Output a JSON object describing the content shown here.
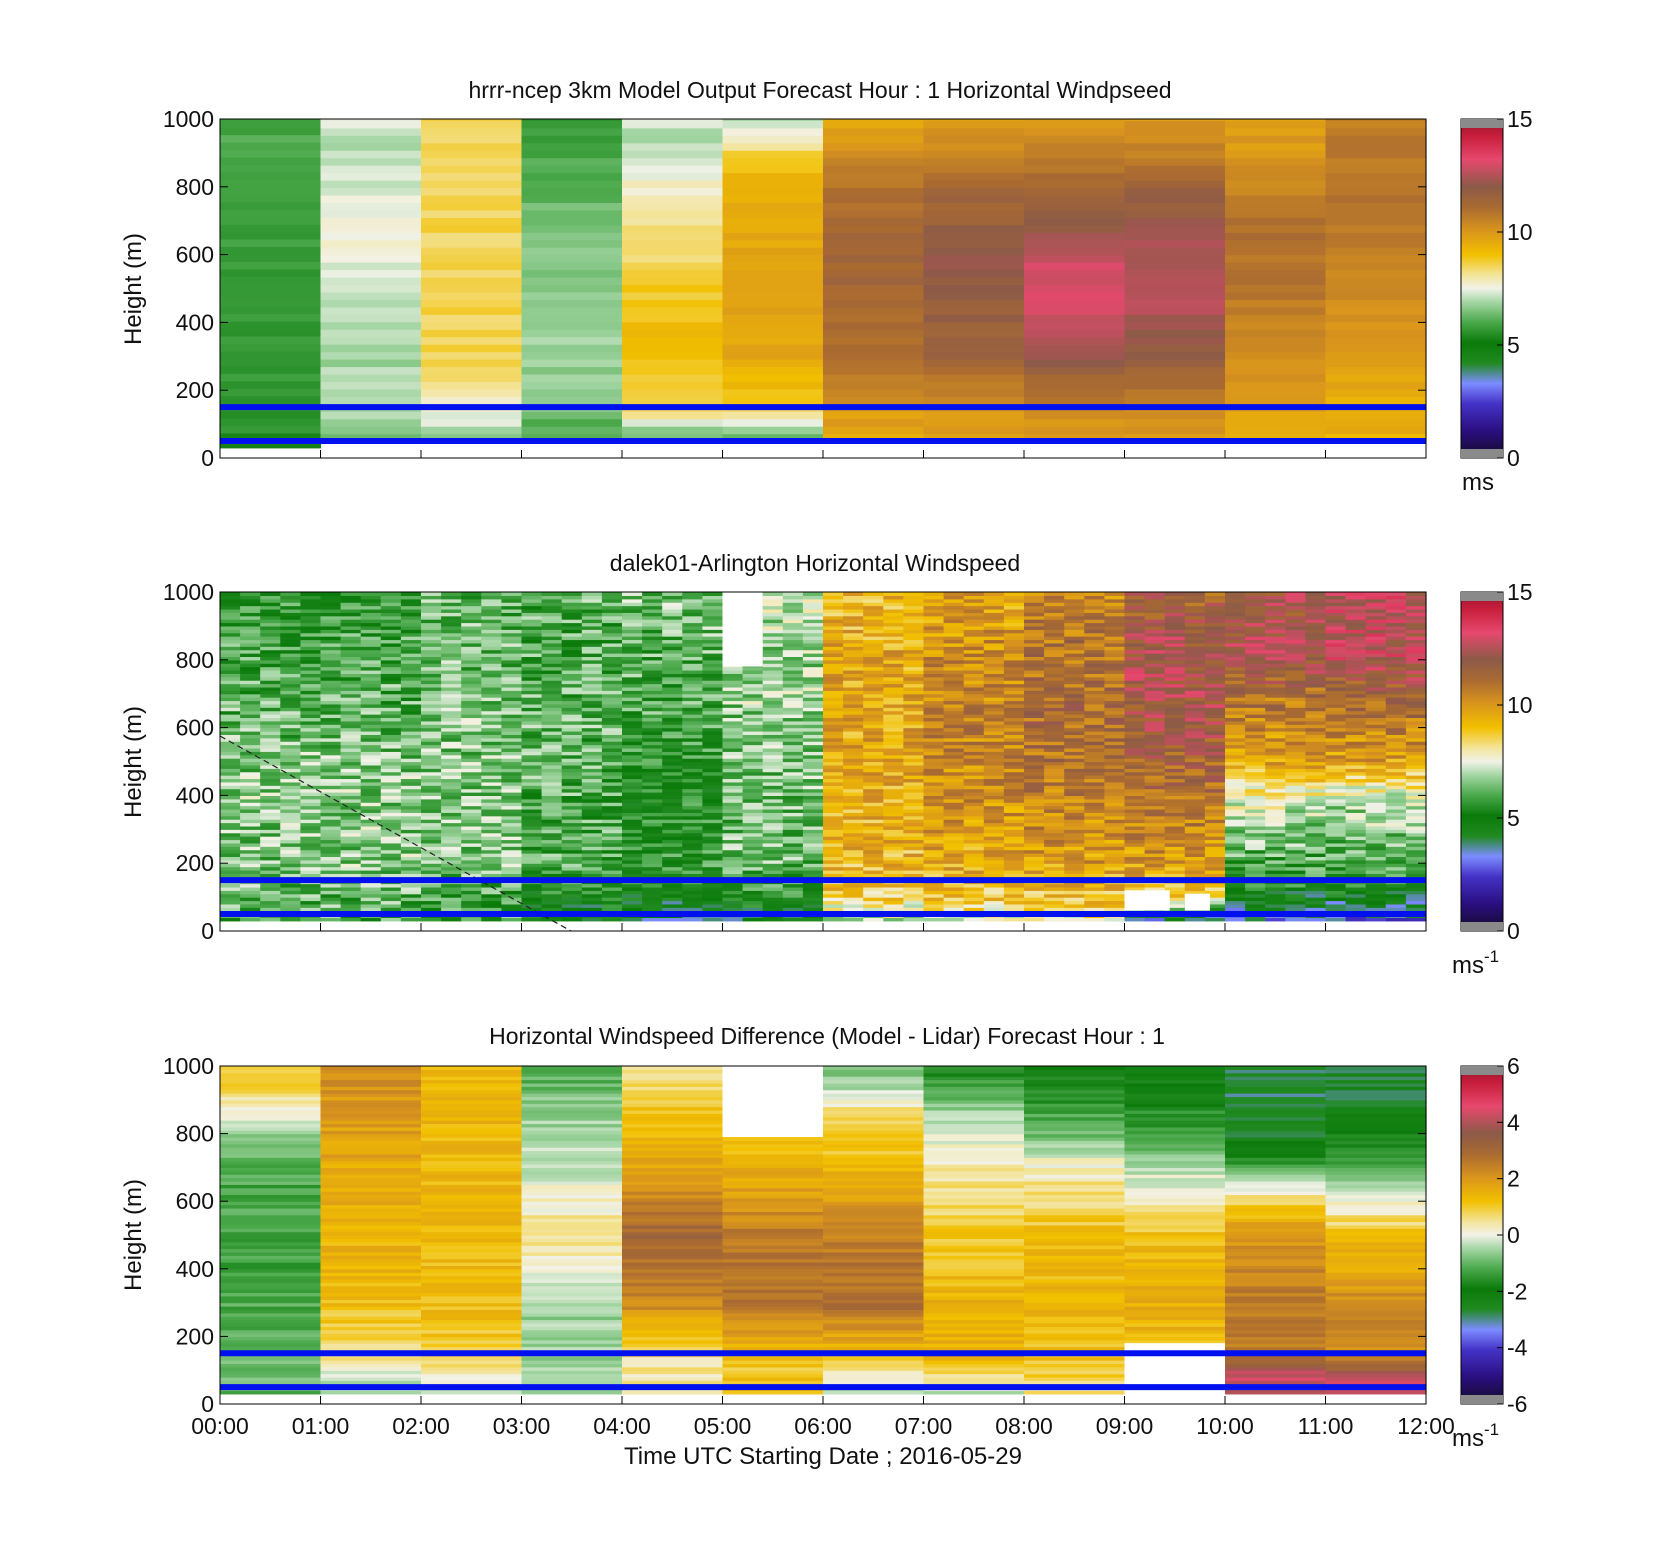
{
  "figure": {
    "xlabel": "Time UTC  Starting Date ; 2016-05-29"
  },
  "chart_data": [
    {
      "type": "heatmap",
      "title": "hrrr-ncep 3km Model Output   Forecast Hour : 1 Horizontal Windpseed",
      "ylabel": "Height (m)",
      "ylim": [
        0,
        1000
      ],
      "yticks": [
        "0",
        "200",
        "400",
        "600",
        "800",
        "1000"
      ],
      "x_range": [
        "00:00",
        "12:00"
      ],
      "colorbar": {
        "min": 0,
        "max": 15,
        "ticks": [
          "0",
          "5",
          "10",
          "15"
        ],
        "unit": "ms"
      },
      "reference_lines_m": [
        50,
        150
      ],
      "reference_line_color": "#0010ee",
      "value_unit": "m/s",
      "hours": [
        "00:00",
        "01:00",
        "02:00",
        "03:00",
        "04:00",
        "05:00",
        "06:00",
        "07:00",
        "08:00",
        "09:00",
        "10:00",
        "11:00"
      ],
      "column_profiles": [
        [
          [
            30,
            5.5
          ],
          [
            1000,
            6.0
          ]
        ],
        [
          [
            50,
            6.0
          ],
          [
            100,
            6.8
          ],
          [
            200,
            7.2
          ],
          [
            300,
            6.8
          ],
          [
            500,
            7.3
          ],
          [
            700,
            7.6
          ],
          [
            900,
            7.0
          ],
          [
            1000,
            7.3
          ]
        ],
        [
          [
            50,
            6.5
          ],
          [
            150,
            7.8
          ],
          [
            300,
            8.5
          ],
          [
            500,
            8.5
          ],
          [
            700,
            8.5
          ],
          [
            900,
            8.5
          ],
          [
            1000,
            8.4
          ]
        ],
        [
          [
            50,
            5.8
          ],
          [
            150,
            6.5
          ],
          [
            300,
            6.8
          ],
          [
            500,
            6.7
          ],
          [
            700,
            6.4
          ],
          [
            900,
            6.0
          ],
          [
            1000,
            5.8
          ]
        ],
        [
          [
            50,
            6.0
          ],
          [
            150,
            8.5
          ],
          [
            350,
            9.2
          ],
          [
            600,
            8.4
          ],
          [
            800,
            7.8
          ],
          [
            900,
            7.0
          ],
          [
            1000,
            7.2
          ]
        ],
        [
          [
            50,
            6.2
          ],
          [
            150,
            8.6
          ],
          [
            300,
            9.6
          ],
          [
            600,
            9.7
          ],
          [
            800,
            9.5
          ],
          [
            900,
            8.5
          ],
          [
            1000,
            7.0
          ]
        ],
        [
          [
            50,
            9.5
          ],
          [
            150,
            10.0
          ],
          [
            300,
            11.0
          ],
          [
            600,
            11.4
          ],
          [
            800,
            10.8
          ],
          [
            900,
            10.2
          ],
          [
            1000,
            9.6
          ]
        ],
        [
          [
            50,
            9.6
          ],
          [
            150,
            10.2
          ],
          [
            300,
            11.4
          ],
          [
            600,
            12.0
          ],
          [
            800,
            11.2
          ],
          [
            900,
            10.5
          ],
          [
            1000,
            9.8
          ]
        ],
        [
          [
            50,
            9.8
          ],
          [
            150,
            10.5
          ],
          [
            300,
            12.0
          ],
          [
            450,
            13.0
          ],
          [
            550,
            13.0
          ],
          [
            700,
            11.8
          ],
          [
            900,
            10.7
          ],
          [
            1000,
            9.8
          ]
        ],
        [
          [
            50,
            9.8
          ],
          [
            150,
            10.3
          ],
          [
            300,
            11.8
          ],
          [
            450,
            12.6
          ],
          [
            600,
            12.4
          ],
          [
            800,
            11.5
          ],
          [
            900,
            10.6
          ],
          [
            1000,
            10.0
          ]
        ],
        [
          [
            50,
            9.4
          ],
          [
            150,
            9.8
          ],
          [
            300,
            10.2
          ],
          [
            500,
            10.8
          ],
          [
            700,
            11.0
          ],
          [
            800,
            10.5
          ],
          [
            900,
            10.0
          ],
          [
            1000,
            9.8
          ]
        ],
        [
          [
            50,
            9.3
          ],
          [
            150,
            9.5
          ],
          [
            300,
            9.8
          ],
          [
            500,
            10.3
          ],
          [
            700,
            10.8
          ],
          [
            900,
            10.7
          ],
          [
            1000,
            10.6
          ]
        ]
      ]
    },
    {
      "type": "heatmap",
      "title": "dalek01-Arlington  Horizontal Windspeed",
      "ylabel": "Height (m)",
      "ylim": [
        0,
        1000
      ],
      "yticks": [
        "0",
        "200",
        "400",
        "600",
        "800",
        "1000"
      ],
      "x_range": [
        "00:00",
        "12:00"
      ],
      "colorbar": {
        "min": 0,
        "max": 15,
        "ticks": [
          "0",
          "5",
          "10",
          "15"
        ],
        "unit": "ms",
        "unit_exponent": "-1"
      },
      "reference_lines_m": [
        50,
        150
      ],
      "reference_line_color": "#0010ee",
      "value_unit": "m/s",
      "hourly_profiles": [
        [
          [
            30,
            6.0
          ],
          [
            200,
            6.5
          ],
          [
            400,
            6.7
          ],
          [
            600,
            6.3
          ],
          [
            800,
            6.0
          ],
          [
            1000,
            5.5
          ]
        ],
        [
          [
            30,
            6.0
          ],
          [
            200,
            6.6
          ],
          [
            400,
            6.6
          ],
          [
            600,
            6.3
          ],
          [
            800,
            6.0
          ],
          [
            1000,
            5.6
          ]
        ],
        [
          [
            30,
            5.8
          ],
          [
            200,
            6.5
          ],
          [
            400,
            6.6
          ],
          [
            600,
            6.5
          ],
          [
            800,
            6.3
          ],
          [
            1000,
            6.2
          ]
        ],
        [
          [
            30,
            4.5
          ],
          [
            120,
            5.2
          ],
          [
            200,
            6.0
          ],
          [
            400,
            6.1
          ],
          [
            600,
            6.2
          ],
          [
            800,
            6.0
          ],
          [
            1000,
            6.2
          ]
        ],
        [
          [
            30,
            4.0
          ],
          [
            120,
            5.0
          ],
          [
            200,
            5.6
          ],
          [
            400,
            5.2
          ],
          [
            600,
            5.8
          ],
          [
            800,
            6.2
          ],
          [
            1000,
            6.5
          ]
        ],
        [
          [
            30,
            4.5
          ],
          [
            120,
            5.5
          ],
          [
            200,
            6.3
          ],
          [
            400,
            6.4
          ],
          [
            600,
            6.6
          ],
          [
            800,
            6.8
          ],
          [
            1000,
            7.0
          ]
        ],
        [
          [
            30,
            7.0
          ],
          [
            100,
            8.6
          ],
          [
            200,
            9.2
          ],
          [
            400,
            9.5
          ],
          [
            600,
            9.6
          ],
          [
            800,
            9.5
          ],
          [
            1000,
            9.2
          ]
        ],
        [
          [
            30,
            7.5
          ],
          [
            100,
            8.8
          ],
          [
            200,
            9.5
          ],
          [
            400,
            10.2
          ],
          [
            600,
            10.5
          ],
          [
            800,
            10.2
          ],
          [
            1000,
            9.6
          ]
        ],
        [
          [
            30,
            7.8
          ],
          [
            100,
            9.0
          ],
          [
            200,
            9.8
          ],
          [
            400,
            10.6
          ],
          [
            600,
            11.2
          ],
          [
            800,
            11.0
          ],
          [
            1000,
            10.4
          ]
        ],
        [
          [
            30,
            3.5
          ],
          [
            100,
            8.5
          ],
          [
            200,
            9.8
          ],
          [
            400,
            11.0
          ],
          [
            600,
            12.0
          ],
          [
            800,
            12.4
          ],
          [
            1000,
            11.4
          ]
        ],
        [
          [
            30,
            3.0
          ],
          [
            120,
            5.0
          ],
          [
            200,
            6.0
          ],
          [
            350,
            7.0
          ],
          [
            500,
            9.6
          ],
          [
            700,
            11.0
          ],
          [
            800,
            12.3
          ],
          [
            1000,
            12.0
          ]
        ],
        [
          [
            30,
            2.8
          ],
          [
            120,
            5.0
          ],
          [
            200,
            6.0
          ],
          [
            400,
            7.2
          ],
          [
            500,
            9.8
          ],
          [
            700,
            11.4
          ],
          [
            800,
            12.6
          ],
          [
            1000,
            12.6
          ]
        ]
      ],
      "missing_cells_m": [
        {
          "t0": 5.0,
          "t1": 5.4,
          "z0": 780,
          "z1": 1000
        },
        {
          "t0": 9.0,
          "t1": 9.45,
          "z0": 60,
          "z1": 120
        },
        {
          "t0": 9.6,
          "t1": 9.85,
          "z0": 60,
          "z1": 110
        }
      ],
      "annotation": "dashed line from 580 m at 00:00 to 0 m at 03:30"
    },
    {
      "type": "heatmap",
      "title": "Horizontal Windspeed Difference (Model - Lidar) Forecast Hour : 1",
      "ylabel": "Height (m)",
      "xlabel": "Time UTC  Starting Date ; 2016-05-29",
      "ylim": [
        0,
        1000
      ],
      "yticks": [
        "0",
        "200",
        "400",
        "600",
        "800",
        "1000"
      ],
      "xticks": [
        "00:00",
        "01:00",
        "02:00",
        "03:00",
        "04:00",
        "05:00",
        "06:00",
        "07:00",
        "08:00",
        "09:00",
        "10:00",
        "11:00",
        "12:00"
      ],
      "colorbar": {
        "min": -6,
        "max": 6,
        "ticks": [
          "-6",
          "-4",
          "-2",
          "0",
          "2",
          "4",
          "6"
        ],
        "unit": "ms",
        "unit_exponent": "-1"
      },
      "reference_lines_m": [
        50,
        150
      ],
      "reference_line_color": "#0010ee",
      "value_unit": "m/s",
      "column_profiles": [
        [
          [
            30,
            -1.0
          ],
          [
            150,
            -1.0
          ],
          [
            400,
            -1.3
          ],
          [
            700,
            -1.2
          ],
          [
            850,
            -0.2
          ],
          [
            950,
            1.0
          ],
          [
            1000,
            1.2
          ]
        ],
        [
          [
            30,
            -0.6
          ],
          [
            150,
            0.5
          ],
          [
            300,
            1.3
          ],
          [
            600,
            1.5
          ],
          [
            900,
            2.0
          ],
          [
            1000,
            2.2
          ]
        ],
        [
          [
            30,
            -0.5
          ],
          [
            150,
            1.0
          ],
          [
            300,
            1.3
          ],
          [
            600,
            1.3
          ],
          [
            900,
            1.4
          ],
          [
            1000,
            1.3
          ]
        ],
        [
          [
            30,
            -0.5
          ],
          [
            150,
            -0.5
          ],
          [
            300,
            -0.6
          ],
          [
            500,
            0.6
          ],
          [
            700,
            -0.3
          ],
          [
            900,
            -0.6
          ],
          [
            1000,
            -1.4
          ]
        ],
        [
          [
            30,
            0.3
          ],
          [
            150,
            0.5
          ],
          [
            300,
            2.3
          ],
          [
            500,
            3.0
          ],
          [
            700,
            1.8
          ],
          [
            900,
            1.0
          ],
          [
            1000,
            0.6
          ]
        ],
        [
          [
            30,
            1.0
          ],
          [
            150,
            1.2
          ],
          [
            300,
            2.8
          ],
          [
            500,
            2.5
          ],
          [
            700,
            1.5
          ],
          [
            790,
            1.2
          ]
        ],
        [
          [
            30,
            -0.3
          ],
          [
            150,
            1.2
          ],
          [
            300,
            2.9
          ],
          [
            500,
            2.4
          ],
          [
            700,
            1.3
          ],
          [
            850,
            0.8
          ],
          [
            950,
            -0.6
          ],
          [
            1000,
            -0.8
          ]
        ],
        [
          [
            30,
            -0.3
          ],
          [
            150,
            1.5
          ],
          [
            300,
            1.4
          ],
          [
            500,
            1.0
          ],
          [
            700,
            0.3
          ],
          [
            850,
            -0.4
          ],
          [
            950,
            -1.4
          ],
          [
            1000,
            -1.6
          ]
        ],
        [
          [
            30,
            0.5
          ],
          [
            150,
            1.2
          ],
          [
            300,
            1.4
          ],
          [
            500,
            1.2
          ],
          [
            700,
            0.3
          ],
          [
            800,
            -0.9
          ],
          [
            900,
            -1.5
          ],
          [
            1000,
            -2.0
          ]
        ],
        [
          [
            180,
            1.2
          ],
          [
            300,
            1.6
          ],
          [
            500,
            1.2
          ],
          [
            600,
            0.3
          ],
          [
            700,
            -0.3
          ],
          [
            800,
            -1.4
          ],
          [
            900,
            -1.8
          ],
          [
            1000,
            -2.0
          ]
        ],
        [
          [
            30,
            4.0
          ],
          [
            80,
            4.5
          ],
          [
            150,
            2.5
          ],
          [
            300,
            2.6
          ],
          [
            500,
            2.0
          ],
          [
            600,
            0.8
          ],
          [
            700,
            -1.2
          ],
          [
            800,
            -2.6
          ],
          [
            900,
            -2.8
          ],
          [
            1000,
            -2.9
          ]
        ],
        [
          [
            30,
            4.5
          ],
          [
            80,
            4.0
          ],
          [
            150,
            2.3
          ],
          [
            300,
            2.2
          ],
          [
            500,
            1.2
          ],
          [
            600,
            0.0
          ],
          [
            700,
            -1.4
          ],
          [
            800,
            -2.0
          ],
          [
            900,
            -2.6
          ],
          [
            1000,
            -2.7
          ]
        ]
      ],
      "missing_cells_m": [
        {
          "t0": 5.0,
          "t1": 6.0,
          "z0": 790,
          "z1": 1000
        },
        {
          "t0": 9.0,
          "t1": 10.0,
          "z0": 30,
          "z1": 180
        }
      ]
    }
  ]
}
